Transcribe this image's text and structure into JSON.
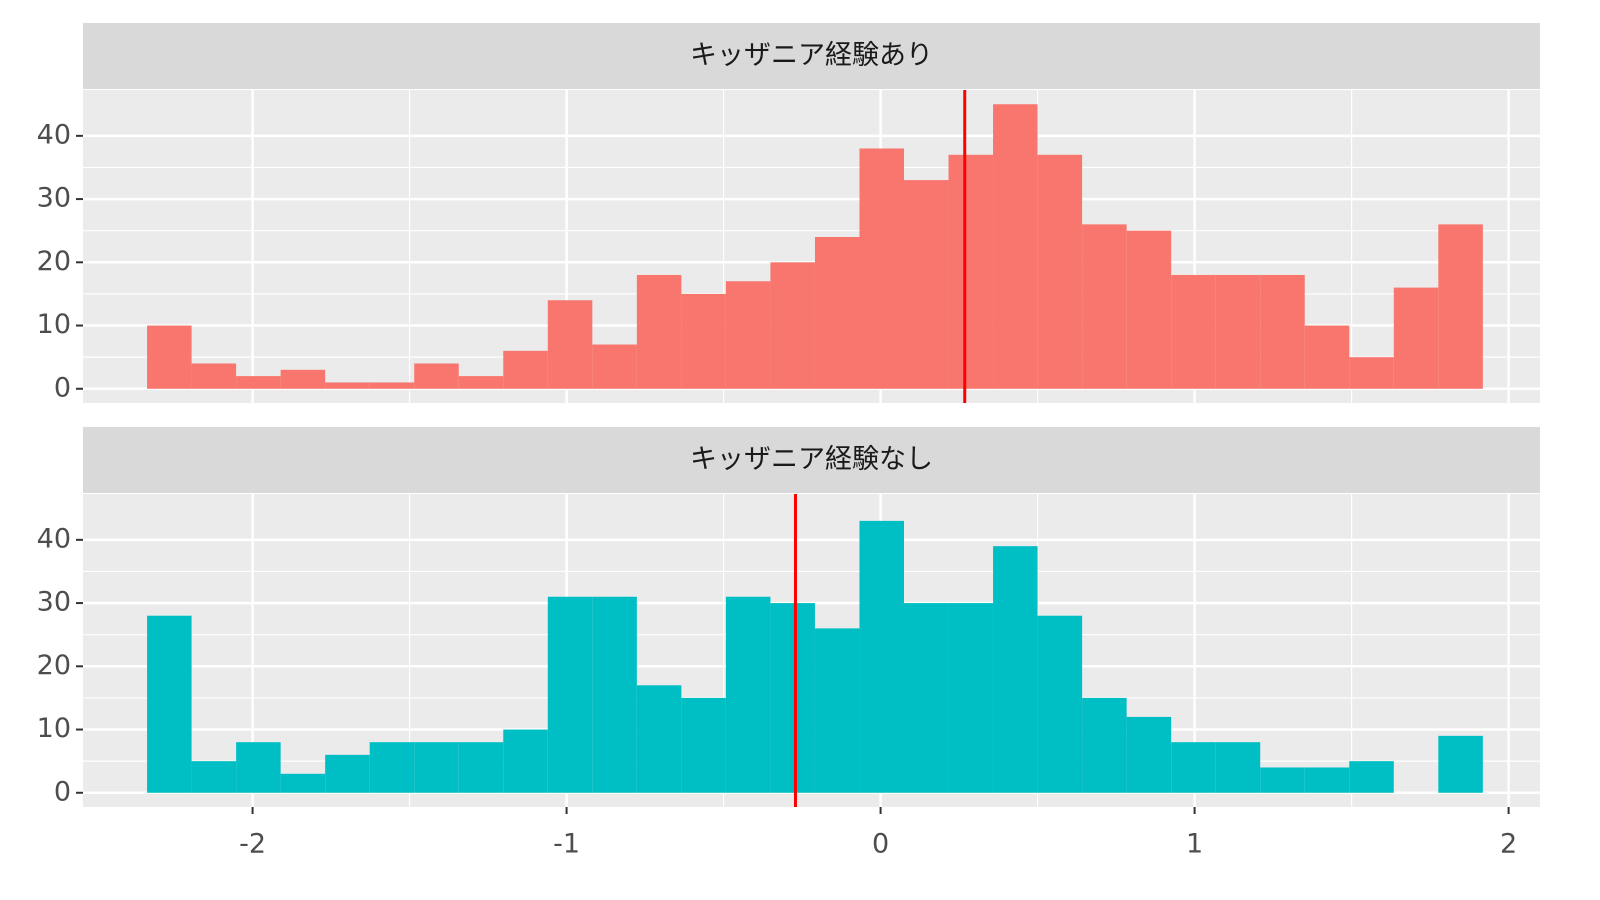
{
  "chart_data": [
    {
      "type": "histogram",
      "title": "キッザニア経験あり",
      "color": "#f8766d",
      "bins": [
        -2.336,
        -2.1942,
        -2.0524,
        -1.9106,
        -1.7688,
        -1.627,
        -1.4852,
        -1.3434,
        -1.2016,
        -1.0598,
        -0.918,
        -0.7762,
        -0.6344,
        -0.4926,
        -0.3508,
        -0.209,
        -0.0672,
        0.0746,
        0.2164,
        0.3582,
        0.5,
        0.6418,
        0.7836,
        0.9254,
        1.0672,
        1.209,
        1.3508,
        1.4926,
        1.6344,
        1.7762,
        1.918
      ],
      "values": [
        10,
        4,
        2,
        3,
        1,
        1,
        4,
        2,
        6,
        14,
        7,
        18,
        15,
        17,
        20,
        24,
        38,
        33,
        37,
        45,
        37,
        26,
        25,
        18,
        18,
        18,
        10,
        5,
        16,
        26
      ],
      "vline": 0.268,
      "vline_color": "#ff0000",
      "xlim": [
        -2.54,
        2.1
      ],
      "xticks": [
        -2,
        -1,
        0,
        1,
        2
      ],
      "ylim": [
        -2.25,
        47.25
      ],
      "yticks": [
        0,
        10,
        20,
        30,
        40
      ],
      "grid": true
    },
    {
      "type": "histogram",
      "title": "キッザニア経験なし",
      "color": "#00bfc4",
      "bins": [
        -2.336,
        -2.1942,
        -2.0524,
        -1.9106,
        -1.7688,
        -1.627,
        -1.4852,
        -1.3434,
        -1.2016,
        -1.0598,
        -0.918,
        -0.7762,
        -0.6344,
        -0.4926,
        -0.3508,
        -0.209,
        -0.0672,
        0.0746,
        0.2164,
        0.3582,
        0.5,
        0.6418,
        0.7836,
        0.9254,
        1.0672,
        1.209,
        1.3508,
        1.4926,
        1.6344,
        1.7762,
        1.918
      ],
      "values": [
        28,
        5,
        8,
        3,
        6,
        8,
        8,
        8,
        10,
        31,
        31,
        17,
        15,
        31,
        30,
        26,
        43,
        30,
        30,
        39,
        28,
        15,
        12,
        8,
        8,
        4,
        4,
        5,
        0,
        9
      ],
      "vline": -0.271,
      "vline_color": "#ff0000",
      "xlim": [
        -2.54,
        2.1
      ],
      "xticks": [
        -2,
        -1,
        0,
        1,
        2
      ],
      "ylim": [
        -2.25,
        47.25
      ],
      "yticks": [
        0,
        10,
        20,
        30,
        40
      ],
      "grid": true
    }
  ]
}
